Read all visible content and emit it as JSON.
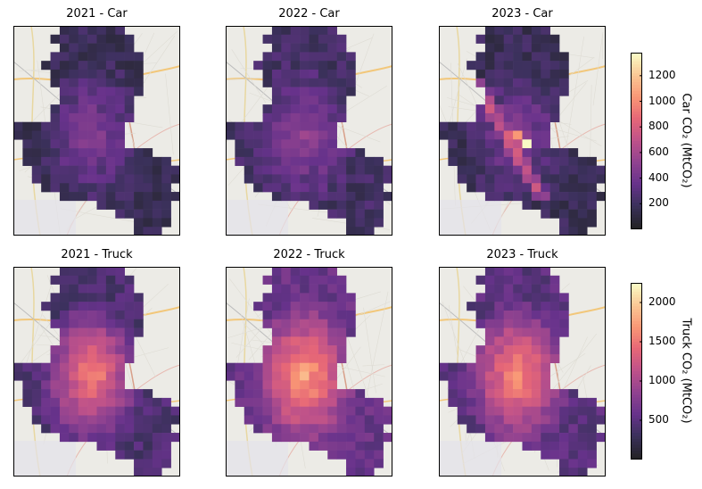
{
  "chart_data": {
    "type": "heatmap",
    "colormap": "magma",
    "background": "street map basemap",
    "panels": [
      {
        "title": "2021 - Car",
        "mode": "Car",
        "year": "2021"
      },
      {
        "title": "2022 - Car",
        "mode": "Car",
        "year": "2022"
      },
      {
        "title": "2023 - Car",
        "mode": "Car",
        "year": "2023"
      },
      {
        "title": "2021 - Truck",
        "mode": "Truck",
        "year": "2021"
      },
      {
        "title": "2022 - Truck",
        "mode": "Truck",
        "year": "2022"
      },
      {
        "title": "2023 - Truck",
        "mode": "Truck",
        "year": "2023"
      }
    ],
    "colorbars": [
      {
        "label": "Car CO₂ (MtCO₂)",
        "ticks": [
          "200",
          "400",
          "600",
          "800",
          "1000",
          "1200"
        ],
        "tick_values": [
          200,
          400,
          600,
          800,
          1000,
          1200
        ],
        "range": [
          0,
          1380
        ]
      },
      {
        "label": "Truck CO₂ (MtCO₂)",
        "ticks": [
          "500",
          "1000",
          "1500",
          "2000"
        ],
        "tick_values": [
          500,
          1000,
          1500,
          2000
        ],
        "range": [
          0,
          2250
        ]
      }
    ]
  }
}
